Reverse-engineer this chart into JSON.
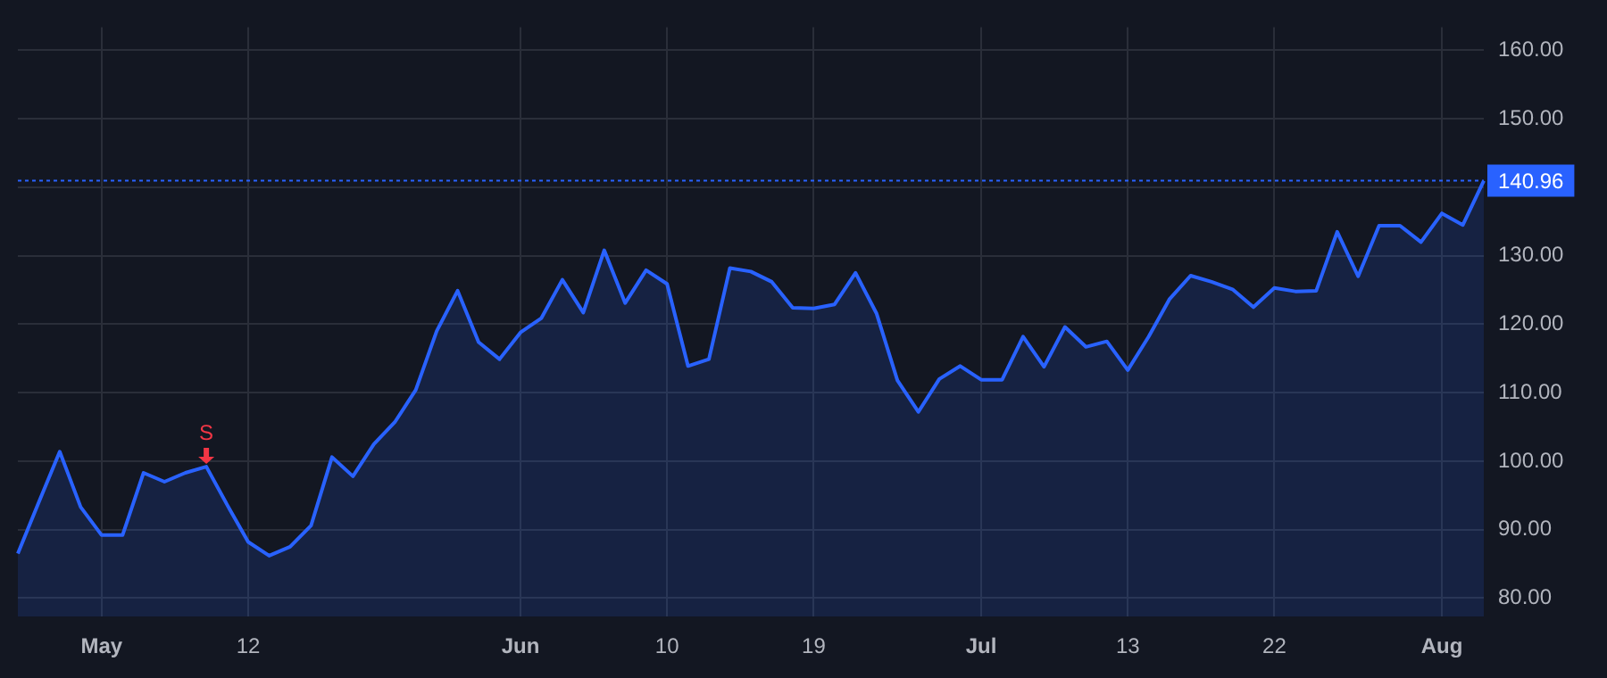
{
  "chart_data": {
    "type": "area",
    "categories": [
      null,
      null,
      null,
      null,
      "May",
      null,
      null,
      null,
      null,
      null,
      null,
      "12",
      null,
      null,
      null,
      null,
      null,
      null,
      null,
      null,
      null,
      null,
      null,
      null,
      "Jun",
      null,
      null,
      null,
      null,
      null,
      null,
      "10",
      null,
      null,
      null,
      null,
      null,
      null,
      "19",
      null,
      null,
      null,
      null,
      null,
      null,
      null,
      "Jul",
      null,
      null,
      null,
      null,
      null,
      null,
      "13",
      null,
      null,
      null,
      null,
      null,
      null,
      "22",
      null,
      null,
      null,
      null,
      null,
      null,
      null,
      "Aug",
      null,
      null
    ],
    "series": [
      {
        "color": "#2962ff",
        "values": [
          86.5,
          94,
          101.4,
          93.3,
          89.2,
          89.2,
          98.3,
          97.0,
          98.3,
          99.2,
          93.6,
          88.2,
          86.2,
          87.5,
          90.6,
          100.6,
          97.8,
          102.5,
          105.7,
          110.4,
          119.0,
          124.9,
          117.4,
          114.9,
          118.8,
          120.9,
          126.5,
          121.7,
          130.8,
          123.1,
          127.9,
          125.9,
          113.9,
          114.9,
          128.2,
          127.7,
          126.2,
          122.4,
          122.3,
          122.9,
          127.5,
          121.6,
          111.8,
          107.2,
          112.0,
          113.9,
          111.9,
          111.9,
          118.2,
          113.8,
          119.6,
          116.7,
          117.5,
          113.3,
          118.2,
          123.7,
          127.1,
          126.2,
          125.1,
          122.5,
          125.3,
          124.8,
          124.9,
          133.5,
          127.0,
          134.4,
          134.4,
          132.0,
          136.2,
          134.5,
          140.96
        ]
      }
    ],
    "ylim": [
      77.3,
      163.4
    ],
    "yticks": [
      {
        "value": 80,
        "label": "80.00"
      },
      {
        "value": 90,
        "label": "90.00"
      },
      {
        "value": 100,
        "label": "100.00"
      },
      {
        "value": 110,
        "label": "110.00"
      },
      {
        "value": 120,
        "label": "120.00"
      },
      {
        "value": 130,
        "label": "130.00"
      },
      {
        "value": 140,
        "label": null
      },
      {
        "value": 150,
        "label": "150.00"
      },
      {
        "value": 160,
        "label": "160.00"
      }
    ],
    "ref_lines": [
      {
        "axis": "y",
        "value": 140.96,
        "label": "140.96",
        "color": "#2962ff",
        "line_style": "dotted"
      }
    ],
    "annotations": [
      {
        "text": "S",
        "y": 99.6
      }
    ],
    "grid": true,
    "legend": false,
    "marker": "none",
    "line_style": "solid"
  }
}
